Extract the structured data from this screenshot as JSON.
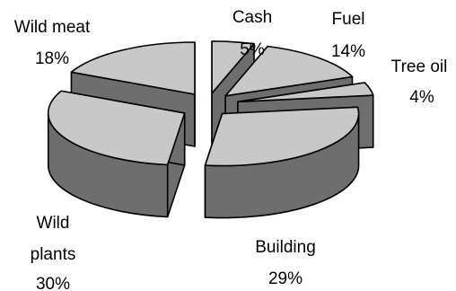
{
  "chart_data": {
    "type": "pie",
    "title": "",
    "exploded": true,
    "three_d": true,
    "colors": {
      "top": "#c8c8c8",
      "side": "#6e6e6e",
      "edge": "#000000"
    },
    "slices": [
      {
        "label": "Cash",
        "value": 5,
        "display": "5%"
      },
      {
        "label": "Fuel",
        "value": 14,
        "display": "14%"
      },
      {
        "label": "Tree oil",
        "value": 4,
        "display": "4%"
      },
      {
        "label": "Building",
        "value": 29,
        "display": "29%"
      },
      {
        "label": "Wild plants",
        "label_lines": [
          "Wild",
          "plants"
        ],
        "value": 30,
        "display": "30%"
      },
      {
        "label": "Wild meat",
        "value": 18,
        "display": "18%"
      }
    ]
  }
}
